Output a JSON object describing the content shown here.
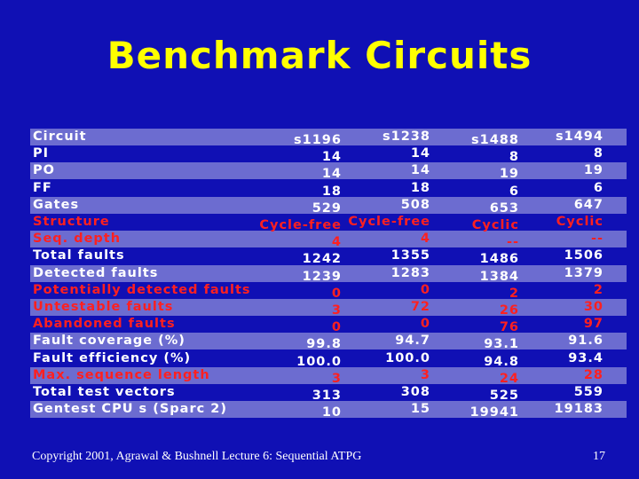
{
  "slide": {
    "title": "Benchmark Circuits",
    "footer": "Copyright 2001, Agrawal & Bushnell Lecture 6: Sequential ATPG",
    "page_number": "17"
  },
  "table": {
    "headers": [
      "Circuit",
      "s1196",
      "s1238",
      "s1488",
      "s1494"
    ],
    "rows": [
      {
        "label": "PI",
        "values": [
          "14",
          "14",
          "8",
          "8"
        ],
        "color": "white"
      },
      {
        "label": "PO",
        "values": [
          "14",
          "14",
          "19",
          "19"
        ],
        "color": "white"
      },
      {
        "label": "FF",
        "values": [
          "18",
          "18",
          "6",
          "6"
        ],
        "color": "white"
      },
      {
        "label": "Gates",
        "values": [
          "529",
          "508",
          "653",
          "647"
        ],
        "color": "white"
      },
      {
        "label": "Structure",
        "values": [
          "Cycle-free",
          "Cycle-free",
          "Cyclic",
          "Cyclic"
        ],
        "color": "red"
      },
      {
        "label": "Seq. depth",
        "values": [
          "4",
          "4",
          "--",
          "--"
        ],
        "color": "red"
      },
      {
        "label": "Total faults",
        "values": [
          "1242",
          "1355",
          "1486",
          "1506"
        ],
        "color": "white"
      },
      {
        "label": "Detected faults",
        "values": [
          "1239",
          "1283",
          "1384",
          "1379"
        ],
        "color": "white"
      },
      {
        "label": "Potentially detected faults",
        "values": [
          "0",
          "0",
          "2",
          "2"
        ],
        "color": "red"
      },
      {
        "label": "Untestable faults",
        "values": [
          "3",
          "72",
          "26",
          "30"
        ],
        "color": "red"
      },
      {
        "label": "Abandoned faults",
        "values": [
          "0",
          "0",
          "76",
          "97"
        ],
        "color": "red"
      },
      {
        "label": "Fault coverage (%)",
        "values": [
          "99.8",
          "94.7",
          "93.1",
          "91.6"
        ],
        "color": "white"
      },
      {
        "label": "Fault efficiency (%)",
        "values": [
          "100.0",
          "100.0",
          "94.8",
          "93.4"
        ],
        "color": "white"
      },
      {
        "label": "Max. sequence length",
        "values": [
          "3",
          "3",
          "24",
          "28"
        ],
        "color": "red"
      },
      {
        "label": "Total test vectors",
        "values": [
          "313",
          "308",
          "525",
          "559"
        ],
        "color": "white"
      },
      {
        "label": "Gentest CPU s (Sparc 2)",
        "values": [
          "10",
          "15",
          "19941",
          "19183"
        ],
        "color": "white"
      }
    ]
  },
  "colors": {
    "background": "#1010b4",
    "title": "#ffff00",
    "band": "#6c6cd0",
    "text": "#ffffff",
    "highlight": "#ff2020"
  }
}
